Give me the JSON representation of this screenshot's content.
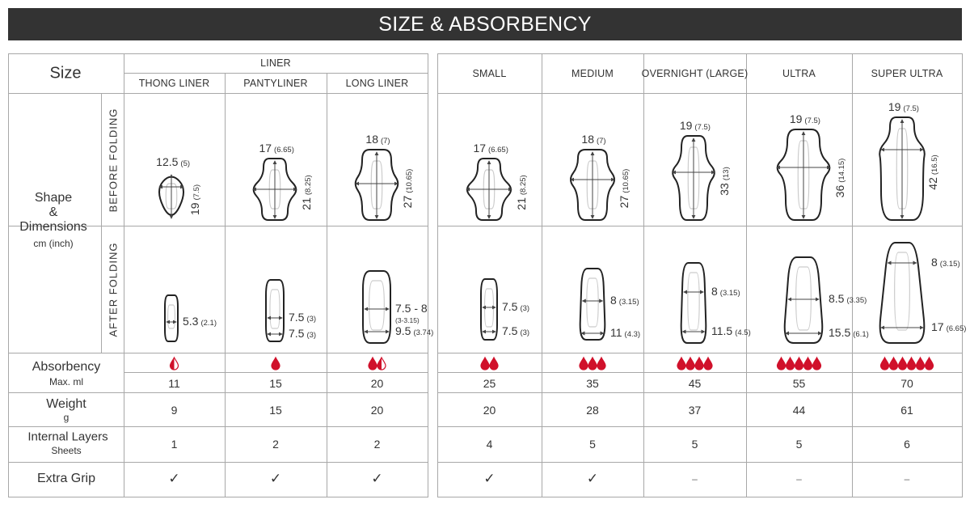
{
  "header": {
    "title": "SIZE & ABSORBENCY"
  },
  "labels": {
    "size": "Size",
    "liner_group": "LINER",
    "shape": "Shape",
    "amp": "&",
    "dimensions": "Dimensions",
    "units": "cm (inch)",
    "before": "BEFORE  FOLDING",
    "after": "AFTER  FOLDING",
    "absorbency": "Absorbency",
    "absorbency_sub": "Max. ml",
    "weight": "Weight",
    "weight_sub": "g",
    "layers": "Internal Layers",
    "layers_sub": "Sheets",
    "grip": "Extra Grip"
  },
  "colors": {
    "header_bg": "#333333",
    "drop": "#d0112b",
    "grid": "#a8a8a8",
    "text": "#333333"
  },
  "products": [
    {
      "name": "THONG LINER",
      "group": "LINER",
      "before": {
        "width": "12.5",
        "width_in": "(5)",
        "length": "19",
        "length_in": "(7.5)"
      },
      "after": [
        {
          "v": "5.3",
          "in": "(2.1)"
        }
      ],
      "drops": 0.5,
      "max_ml": "11",
      "weight": "9",
      "layers": "1",
      "extra_grip": "✓"
    },
    {
      "name": "PANTYLINER",
      "group": "LINER",
      "before": {
        "width": "17",
        "width_in": "(6.65)",
        "length": "21",
        "length_in": "(8.25)"
      },
      "after": [
        {
          "v": "7.5",
          "in": "(3)"
        },
        {
          "v": "7.5",
          "in": "(3)"
        }
      ],
      "drops": 1,
      "max_ml": "15",
      "weight": "15",
      "layers": "2",
      "extra_grip": "✓"
    },
    {
      "name": "LONG LINER",
      "group": "LINER",
      "before": {
        "width": "18",
        "width_in": "(7)",
        "length": "27",
        "length_in": "(10.65)"
      },
      "after": [
        {
          "v": "7.5 - 8",
          "in": "(3-3.15)"
        },
        {
          "v": "9.5",
          "in": "(3.74)"
        }
      ],
      "drops": 1.5,
      "max_ml": "20",
      "weight": "20",
      "layers": "2",
      "extra_grip": "✓"
    },
    {
      "name": "SMALL",
      "before": {
        "width": "17",
        "width_in": "(6.65)",
        "length": "21",
        "length_in": "(8.25)"
      },
      "after": [
        {
          "v": "7.5",
          "in": "(3)"
        },
        {
          "v": "7.5",
          "in": "(3)"
        }
      ],
      "drops": 2,
      "max_ml": "25",
      "weight": "20",
      "layers": "4",
      "extra_grip": "✓"
    },
    {
      "name": "MEDIUM",
      "before": {
        "width": "18",
        "width_in": "(7)",
        "length": "27",
        "length_in": "(10.65)"
      },
      "after": [
        {
          "v": "8",
          "in": "(3.15)"
        },
        {
          "v": "11",
          "in": "(4.3)"
        }
      ],
      "drops": 3,
      "max_ml": "35",
      "weight": "28",
      "layers": "5",
      "extra_grip": "✓"
    },
    {
      "name": "OVERNIGHT (LARGE)",
      "before": {
        "width": "19",
        "width_in": "(7.5)",
        "length": "33",
        "length_in": "(13)"
      },
      "after": [
        {
          "v": "8",
          "in": "(3.15)"
        },
        {
          "v": "11.5",
          "in": "(4.5)"
        }
      ],
      "drops": 4,
      "max_ml": "45",
      "weight": "37",
      "layers": "5",
      "extra_grip": "–"
    },
    {
      "name": "ULTRA",
      "before": {
        "width": "19",
        "width_in": "(7.5)",
        "length": "36",
        "length_in": "(14.15)"
      },
      "after": [
        {
          "v": "8.5",
          "in": "(3.35)"
        },
        {
          "v": "15.5",
          "in": "(6.1)"
        }
      ],
      "drops": 5,
      "max_ml": "55",
      "weight": "44",
      "layers": "5",
      "extra_grip": "–"
    },
    {
      "name": "SUPER ULTRA",
      "before": {
        "width": "19",
        "width_in": "(7.5)",
        "length": "42",
        "length_in": "(16.5)"
      },
      "after": [
        {
          "v": "8",
          "in": "(3.15)"
        },
        {
          "v": "17",
          "in": "(6.65)"
        }
      ],
      "drops": 6,
      "max_ml": "70",
      "weight": "61",
      "layers": "6",
      "extra_grip": "–"
    }
  ]
}
